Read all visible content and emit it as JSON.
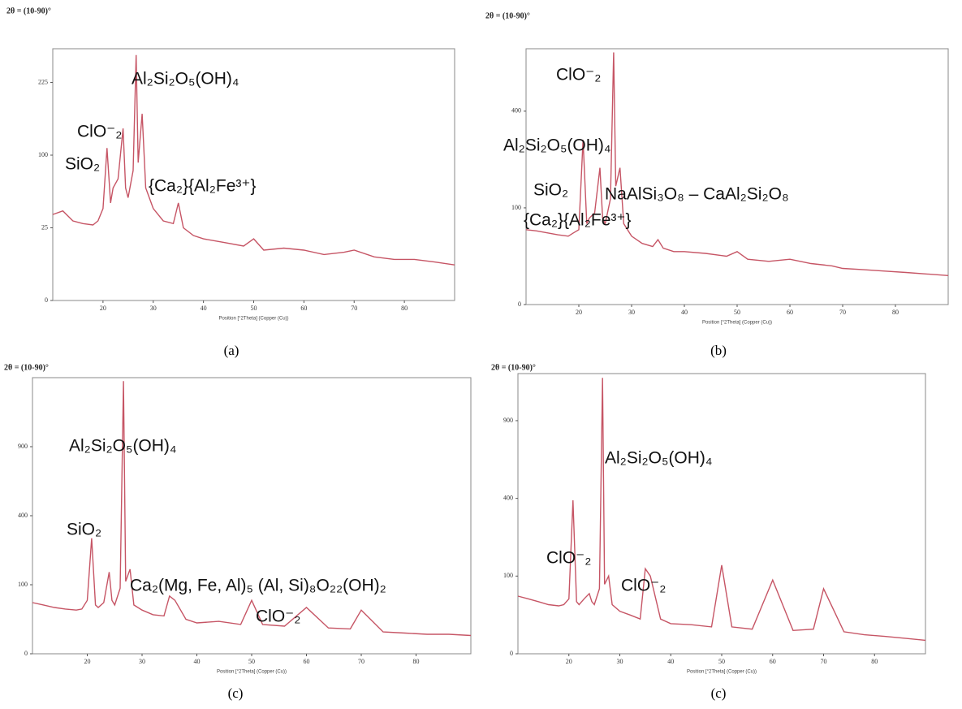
{
  "chart_data": [
    {
      "type": "line",
      "header": "2θ = (10-90)°",
      "caption": "(a)",
      "xlabel": "Position [°2Theta] (Copper (Cu))",
      "yscale": "sqrt",
      "color": "#c65565",
      "xlim": [
        10,
        90
      ],
      "xticks": [
        20,
        30,
        40,
        50,
        60,
        70,
        80
      ],
      "ylim": [
        0,
        300
      ],
      "yticks": [
        0,
        25,
        100,
        225
      ],
      "x": [
        10,
        12,
        14,
        16,
        18,
        19,
        20,
        20.8,
        21.5,
        22,
        23,
        24,
        24.5,
        25,
        26,
        26.6,
        27,
        27.8,
        28.5,
        30,
        32,
        34,
        35,
        36,
        38,
        40,
        44,
        48,
        50,
        52,
        56,
        60,
        64,
        68,
        70,
        74,
        78,
        82,
        86,
        90
      ],
      "values": [
        35,
        38,
        30,
        28,
        27,
        30,
        40,
        110,
        45,
        60,
        70,
        140,
        60,
        50,
        80,
        285,
        90,
        165,
        60,
        40,
        30,
        28,
        45,
        25,
        20,
        18,
        16,
        14,
        18,
        12,
        13,
        12,
        10,
        11,
        12,
        9,
        8,
        8,
        7,
        6
      ],
      "annotations": [
        "Al₂Si₂O₅(OH)₄",
        "ClO⁻₂",
        "SiO₂",
        "{Ca₂}{Al₂Fe³⁺}"
      ]
    },
    {
      "type": "line",
      "header": "2θ = (10-90)°",
      "caption": "(b)",
      "xlabel": "Position [°2Theta] (Copper (Cu))",
      "yscale": "sqrt",
      "color": "#c65565",
      "xlim": [
        10,
        90
      ],
      "xticks": [
        20,
        30,
        40,
        50,
        60,
        70,
        80
      ],
      "ylim": [
        0,
        700
      ],
      "yticks": [
        0,
        100,
        400
      ],
      "x": [
        10,
        12,
        14,
        16,
        18,
        19,
        20,
        20.8,
        21.5,
        22,
        23,
        24,
        24.5,
        25,
        26,
        26.6,
        27,
        27.8,
        28.5,
        30,
        32,
        34,
        35,
        36,
        38,
        40,
        44,
        48,
        50,
        52,
        56,
        60,
        64,
        68,
        70,
        74,
        78,
        82,
        86,
        90
      ],
      "values": [
        60,
        58,
        55,
        52,
        50,
        55,
        60,
        290,
        70,
        80,
        90,
        200,
        80,
        70,
        120,
        680,
        150,
        200,
        70,
        50,
        40,
        36,
        45,
        34,
        30,
        30,
        28,
        25,
        30,
        22,
        20,
        22,
        18,
        16,
        14,
        13,
        12,
        11,
        10,
        9
      ],
      "annotations": [
        "ClO⁻₂",
        "Al₂Si₂O₅(OH)₄",
        "SiO₂",
        "NaAlSi₃O₈ – CaAl₂Si₂O₈",
        "{Ca₂}{Al₂Fe³⁺}"
      ]
    },
    {
      "type": "line",
      "header": "2θ = (10-90)°",
      "caption": "(c)",
      "xlabel": "Position [°2Theta] (Copper (Cu))",
      "yscale": "sqrt",
      "color": "#c65565",
      "xlim": [
        10,
        90
      ],
      "xticks": [
        20,
        30,
        40,
        50,
        60,
        70,
        80
      ],
      "ylim": [
        0,
        1600
      ],
      "yticks": [
        0,
        100,
        400,
        900
      ],
      "x": [
        10,
        12,
        14,
        16,
        18,
        19,
        20,
        20.8,
        21.5,
        22,
        23,
        24,
        24.5,
        25,
        26,
        26.6,
        27,
        27.8,
        28.5,
        30,
        32,
        34,
        35,
        36,
        38,
        40,
        44,
        48,
        50,
        52,
        56,
        60,
        64,
        68,
        70,
        74,
        78,
        82,
        86,
        90
      ],
      "values": [
        55,
        50,
        45,
        42,
        40,
        42,
        60,
        280,
        50,
        45,
        55,
        140,
        60,
        50,
        90,
        1560,
        110,
        150,
        50,
        40,
        32,
        30,
        70,
        60,
        25,
        20,
        22,
        18,
        60,
        18,
        16,
        45,
        14,
        13,
        40,
        10,
        9,
        8,
        8,
        7
      ],
      "annotations": [
        "Al₂Si₂O₅(OH)₄",
        "SiO₂",
        "Ca₂(Mg, Fe, Al)₅ (Al, Si)₈O₂₂(OH)₂",
        "ClO⁻₂"
      ]
    },
    {
      "type": "line",
      "header": "2θ = (10-90)°",
      "caption": "(c)",
      "xlabel": "Position [°2Theta] (Copper (Cu))",
      "yscale": "sqrt",
      "color": "#c65565",
      "xlim": [
        10,
        90
      ],
      "xticks": [
        20,
        30,
        40,
        50,
        60,
        70,
        80
      ],
      "ylim": [
        0,
        1300
      ],
      "yticks": [
        0,
        100,
        400,
        900
      ],
      "x": [
        10,
        12,
        14,
        16,
        18,
        19,
        20,
        20.8,
        21.5,
        22,
        23,
        24,
        24.5,
        25,
        26,
        26.6,
        27,
        27.8,
        28.5,
        30,
        32,
        34,
        35,
        36,
        38,
        40,
        44,
        48,
        50,
        52,
        56,
        60,
        64,
        68,
        70,
        74,
        78,
        82,
        86,
        90
      ],
      "values": [
        55,
        50,
        45,
        40,
        38,
        40,
        50,
        390,
        45,
        40,
        50,
        60,
        45,
        40,
        70,
        1260,
        80,
        100,
        40,
        30,
        25,
        20,
        120,
        100,
        20,
        15,
        14,
        12,
        130,
        12,
        10,
        90,
        9,
        10,
        70,
        8,
        6,
        5,
        4,
        3
      ],
      "annotations": [
        "Al₂Si₂O₅(OH)₄",
        "ClO⁻₂",
        "ClO⁻₂"
      ]
    }
  ]
}
